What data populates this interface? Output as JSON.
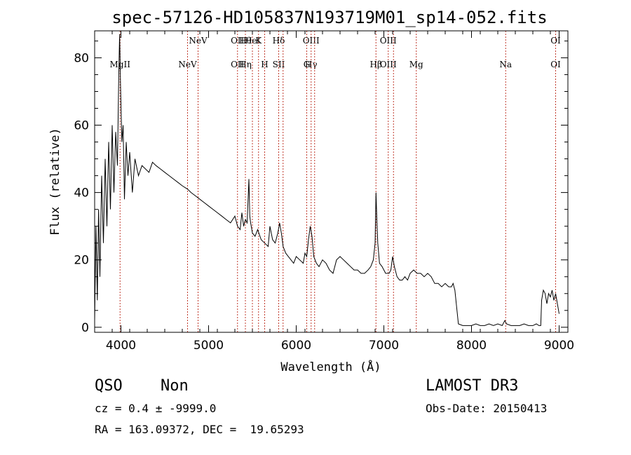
{
  "chart_data": {
    "type": "line",
    "title": "spec-57126-HD105837N193719M01_sp14-052.fits",
    "xlabel": "Wavelength (Å)",
    "ylabel": "Flux (relative)",
    "xlim": [
      3700,
      9100
    ],
    "ylim": [
      -1.5,
      88
    ],
    "xticks": [
      4000,
      5000,
      6000,
      7000,
      8000,
      9000
    ],
    "yticks": [
      0,
      20,
      40,
      60,
      80
    ],
    "grid": false,
    "series": [
      {
        "color": "#000000",
        "x": [
          3700,
          3715,
          3730,
          3745,
          3760,
          3780,
          3800,
          3820,
          3840,
          3860,
          3880,
          3900,
          3920,
          3940,
          3960,
          3975,
          3985,
          3995,
          4010,
          4025,
          4040,
          4060,
          4080,
          4100,
          4130,
          4160,
          4200,
          4240,
          4280,
          4320,
          4360,
          4400,
          4450,
          4500,
          4550,
          4600,
          4650,
          4700,
          4760,
          4800,
          4850,
          4900,
          4950,
          5000,
          5050,
          5100,
          5150,
          5200,
          5250,
          5300,
          5330,
          5360,
          5380,
          5400,
          5420,
          5440,
          5460,
          5470,
          5480,
          5500,
          5530,
          5560,
          5600,
          5640,
          5680,
          5700,
          5730,
          5760,
          5790,
          5810,
          5830,
          5850,
          5880,
          5910,
          5940,
          5970,
          6000,
          6040,
          6080,
          6100,
          6120,
          6140,
          6160,
          6180,
          6200,
          6230,
          6260,
          6300,
          6340,
          6380,
          6420,
          6460,
          6500,
          6540,
          6580,
          6620,
          6660,
          6700,
          6740,
          6780,
          6820,
          6850,
          6880,
          6900,
          6910,
          6920,
          6930,
          6950,
          6980,
          7020,
          7060,
          7080,
          7100,
          7120,
          7150,
          7180,
          7210,
          7240,
          7270,
          7300,
          7340,
          7380,
          7420,
          7460,
          7500,
          7540,
          7580,
          7620,
          7660,
          7700,
          7740,
          7770,
          7790,
          7800,
          7810,
          7830,
          7850,
          7900,
          7950,
          8000,
          8050,
          8100,
          8150,
          8200,
          8250,
          8300,
          8350,
          8380,
          8400,
          8450,
          8500,
          8550,
          8600,
          8650,
          8700,
          8740,
          8770,
          8790,
          8800,
          8820,
          8840,
          8860,
          8880,
          8900,
          8920,
          8940,
          8960,
          8980,
          9000
        ],
        "y": [
          2,
          30,
          8,
          35,
          15,
          45,
          25,
          50,
          30,
          55,
          35,
          60,
          40,
          58,
          48,
          75,
          87,
          72,
          55,
          60,
          38,
          55,
          45,
          52,
          40,
          50,
          45,
          48,
          47,
          46,
          49,
          48,
          47,
          46,
          45,
          44,
          43,
          42,
          41,
          40,
          39,
          38,
          37,
          36,
          35,
          34,
          33,
          32,
          31,
          33,
          30,
          29,
          34,
          30,
          32,
          31,
          44,
          33,
          31,
          28,
          27,
          29,
          26,
          25,
          24,
          30,
          26,
          25,
          28,
          31,
          28,
          24,
          22,
          21,
          20,
          19,
          21,
          20,
          19,
          22,
          21,
          26,
          30,
          27,
          21,
          19,
          18,
          20,
          19,
          17,
          16,
          20,
          21,
          20,
          19,
          18,
          17,
          17,
          16,
          16,
          17,
          18,
          20,
          25,
          40,
          32,
          25,
          19,
          18,
          16,
          16,
          17,
          21,
          18,
          15,
          14,
          14,
          15,
          14,
          16,
          17,
          16,
          16,
          15,
          16,
          15,
          13,
          13,
          12,
          13,
          12,
          12,
          13,
          12,
          11,
          6,
          1,
          0.5,
          0.5,
          0.5,
          1,
          0.5,
          0.5,
          1,
          0.5,
          1,
          0.5,
          2,
          1,
          0.5,
          0.5,
          0.5,
          1,
          0.5,
          0.5,
          1,
          0.5,
          0.5,
          8,
          11,
          10,
          7,
          10,
          9,
          11,
          8,
          10,
          7,
          4
        ]
      }
    ],
    "line_markers": [
      {
        "x": 3990,
        "top": "",
        "bottom": "MgII"
      },
      {
        "x": 4760,
        "top": "",
        "bottom": "NeV"
      },
      {
        "x": 4880,
        "top": "NeV",
        "bottom": ""
      },
      {
        "x": 5330,
        "top": "OII",
        "bottom": "OII"
      },
      {
        "x": 5420,
        "top": "Hθ",
        "bottom": "Hη"
      },
      {
        "x": 5500,
        "top": "HeI",
        "bottom": ""
      },
      {
        "x": 5570,
        "top": "K",
        "bottom": ""
      },
      {
        "x": 5640,
        "top": "",
        "bottom": "H"
      },
      {
        "x": 5800,
        "top": "Hδ",
        "bottom": "SII"
      },
      {
        "x": 5850,
        "top": "",
        "bottom": ""
      },
      {
        "x": 6120,
        "top": "",
        "bottom": "G"
      },
      {
        "x": 6170,
        "top": "OIII",
        "bottom": "Hγ"
      },
      {
        "x": 6210,
        "top": "",
        "bottom": ""
      },
      {
        "x": 6910,
        "top": "",
        "bottom": "Hβ"
      },
      {
        "x": 7050,
        "top": "OIII",
        "bottom": "OIII"
      },
      {
        "x": 7110,
        "top": "",
        "bottom": ""
      },
      {
        "x": 7370,
        "top": "",
        "bottom": "Mg"
      },
      {
        "x": 8390,
        "top": "",
        "bottom": "Na"
      },
      {
        "x": 8960,
        "top": "OI",
        "bottom": "OI"
      }
    ]
  },
  "info": {
    "object_class": "QSO",
    "subclass": "Non",
    "survey": "LAMOST DR3",
    "redshift_line": "cz = 0.4 ± -9999.0",
    "obs_date_line": "Obs-Date: 20150413",
    "coords_line": "RA = 163.09372, DEC =  19.65293"
  }
}
